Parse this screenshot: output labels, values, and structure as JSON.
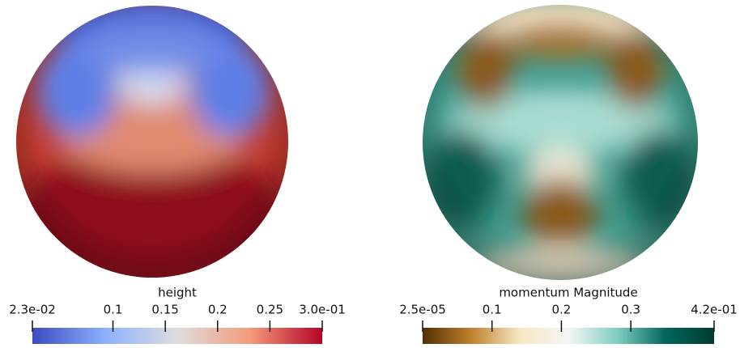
{
  "panels": [
    {
      "title": "height",
      "range": [
        0.023,
        0.3
      ],
      "ticks": [
        {
          "value": 0.023,
          "label": "2.3e-02"
        },
        0.1,
        0.15,
        0.2,
        0.25,
        {
          "value": 0.3,
          "label": "3.0e-01"
        }
      ],
      "colormap": [
        "#3b4cc0",
        "#8db0fe",
        "#dddddd",
        "#f49a7b",
        "#b40426"
      ]
    },
    {
      "title": "momentum Magnitude",
      "range": [
        2.5e-05,
        0.42
      ],
      "ticks": [
        {
          "value": 2.5e-05,
          "label": "2.5e-05"
        },
        0.1,
        0.2,
        0.3,
        {
          "value": 0.42,
          "label": "4.2e-01"
        }
      ],
      "colormap": [
        "#543005",
        "#bf812d",
        "#f6e8c3",
        "#f5f5f5",
        "#80cdc1",
        "#01665e",
        "#003c30"
      ]
    }
  ]
}
